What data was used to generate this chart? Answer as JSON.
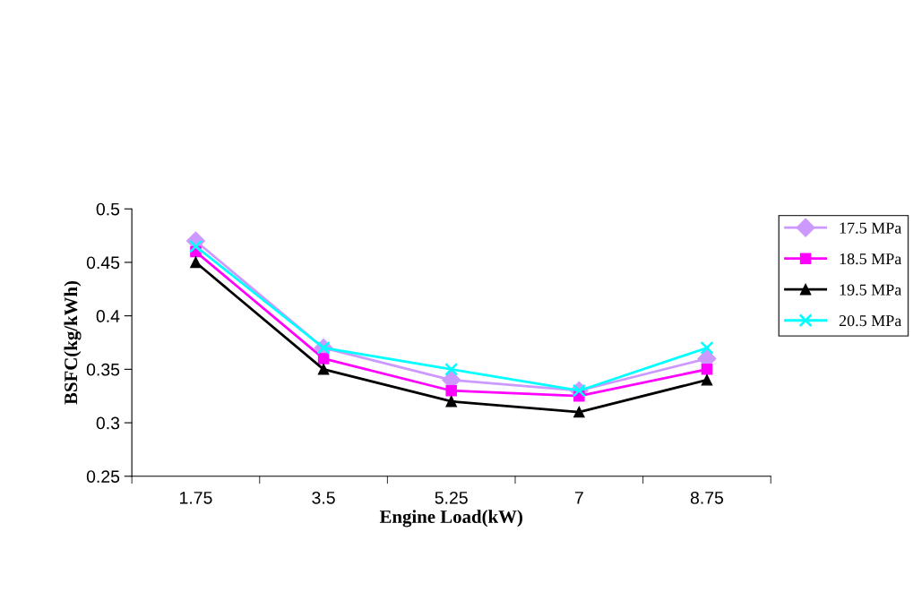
{
  "chart_data": {
    "type": "line",
    "xlabel": "Engine Load(kW)",
    "ylabel": "BSFC(kg/kWh)",
    "categories": [
      "1.75",
      "3.5",
      "5.25",
      "7",
      "8.75"
    ],
    "ylim": [
      0.25,
      0.5
    ],
    "yticks": [
      0.25,
      0.3,
      0.35,
      0.4,
      0.45,
      0.5
    ],
    "grid": false,
    "legend": "right",
    "line_style": "solid",
    "series": [
      {
        "name": "17.5 MPa",
        "color": "#cc99ff",
        "marker": "diamond",
        "values": [
          0.47,
          0.37,
          0.34,
          0.33,
          0.36
        ]
      },
      {
        "name": "18.5 MPa",
        "color": "#ff00ff",
        "marker": "square",
        "values": [
          0.46,
          0.36,
          0.33,
          0.325,
          0.35
        ]
      },
      {
        "name": "19.5 MPa",
        "color": "#000000",
        "marker": "triangle",
        "values": [
          0.45,
          0.35,
          0.32,
          0.31,
          0.34
        ]
      },
      {
        "name": "20.5 MPa",
        "color": "#00ffff",
        "marker": "cross",
        "values": [
          0.465,
          0.37,
          0.35,
          0.33,
          0.37
        ]
      }
    ]
  }
}
